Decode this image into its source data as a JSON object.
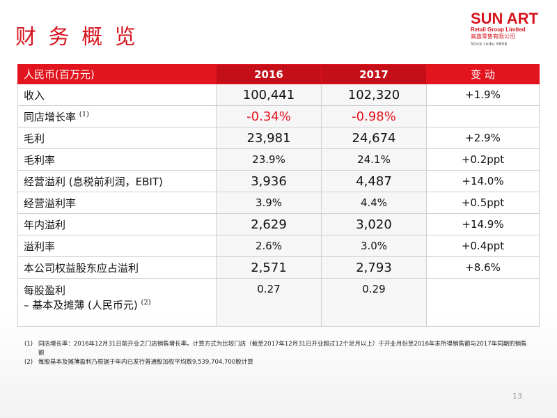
{
  "header": {
    "title": "财 务 概 览",
    "logo": {
      "brand": "SUN ART",
      "subtitle": "Retail Group Limited",
      "chinese": "高鑫零售有限公司",
      "stock_code": "Stock code: 6808"
    }
  },
  "table": {
    "columns": [
      "人民币(百万元)",
      "2016",
      "2017",
      "变 动"
    ],
    "rows": [
      {
        "label": "收入",
        "cells": [
          "100,441",
          "102,320",
          "+1.9%"
        ]
      },
      {
        "label": "同店增长率",
        "note": "(1)",
        "cells": [
          "-0.34%",
          "-0.98%"
        ]
      },
      {
        "label": "毛利",
        "cells": [
          "23,981",
          "24,674",
          "+2.9%"
        ]
      },
      {
        "label": "毛利率",
        "cells": [
          "23.9%",
          "24.1%",
          "+0.2ppt"
        ]
      },
      {
        "label": "经营溢利 (息税前利润，EBIT)",
        "cells": [
          "3,936",
          "4,487",
          "+14.0%"
        ]
      },
      {
        "label": "经营溢利率",
        "cells": [
          "3.9%",
          "4.4%",
          "+0.5ppt"
        ]
      },
      {
        "label": "年内溢利",
        "cells": [
          "2,629",
          "3,020",
          "+14.9%"
        ]
      },
      {
        "label": "溢利率",
        "cells": [
          "2.6%",
          "3.0%",
          "+0.4ppt"
        ]
      },
      {
        "label": "本公司权益股东应占溢利",
        "cells": [
          "2,571",
          "2,793",
          "+8.6%"
        ]
      },
      {
        "label": "每股盈利",
        "sublabel": "– 基本及摊薄 (人民币元)",
        "note": "(2)",
        "cells": [
          "0.27",
          "0.29"
        ]
      }
    ]
  },
  "footnotes": [
    {
      "marker": "(1)",
      "text": "同店增长率：2016年12月31日前开业之门店销售增长率。计算方式为比较门店（截至2017年12月31日开业超过12个足月以上）于开业月份至2016年末所得销售额与2017年同期的销售额"
    },
    {
      "marker": "(2)",
      "text": "每股基本及摊薄盈利乃根据于年内已发行普通股加权平均数9,539,704,700股计算"
    }
  ],
  "page_number": "13"
}
